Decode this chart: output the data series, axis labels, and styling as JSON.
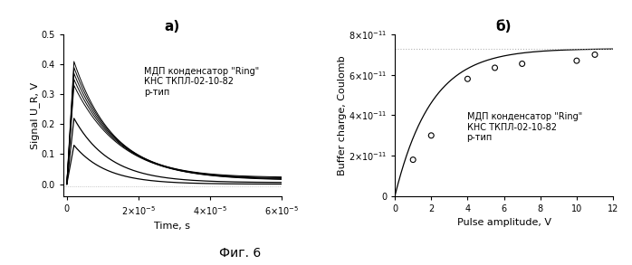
{
  "fig_title_a": "а)",
  "fig_title_b": "б)",
  "bottom_label": "Фиг. 6",
  "plot_a": {
    "xlabel": "Time, s",
    "ylabel": "Signal U_R, V",
    "xlim": [
      -1e-06,
      6e-05
    ],
    "ylim": [
      -0.04,
      0.5
    ],
    "xticks": [
      0,
      2e-05,
      4e-05,
      6e-05
    ],
    "yticks": [
      0.0,
      0.1,
      0.2,
      0.3,
      0.4,
      0.5
    ],
    "annotation": "МДП конденсатор \"Ring\"\nКНС ТКПЛ-02-10-82\np-тип",
    "num_curves": 7,
    "peak_time": 2e-06,
    "peaks": [
      0.41,
      0.39,
      0.37,
      0.35,
      0.33,
      0.22,
      0.13
    ],
    "taus": [
      1.1e-05,
      1.15e-05,
      1.2e-05,
      1.25e-05,
      1.3e-05,
      1e-05,
      9e-06
    ],
    "offsets": [
      0.022,
      0.019,
      0.016,
      0.014,
      0.012,
      0.005,
      0.0
    ]
  },
  "plot_b": {
    "xlabel": "Pulse amplitude, V",
    "ylabel": "Buffer charge, Coulomb",
    "xlim": [
      0,
      12
    ],
    "ylim": [
      0,
      8e-11
    ],
    "xticks": [
      0,
      2,
      4,
      6,
      8,
      10,
      12
    ],
    "yticks": [
      0,
      2e-11,
      4e-11,
      6e-11,
      8e-11
    ],
    "annotation": "МДП конденсатор \"Ring\"\nКНС ТКПЛ-02-10-82\np-тип",
    "data_x": [
      1.0,
      2.0,
      4.0,
      5.5,
      7.0,
      10.0,
      11.0
    ],
    "data_y": [
      1.8e-11,
      3e-11,
      5.8e-11,
      6.35e-11,
      6.55e-11,
      6.7e-11,
      7e-11
    ],
    "asymptote": 7.3e-11,
    "curve_A": 7.3e-11,
    "curve_x0": 0.0,
    "curve_tau": 2.0
  },
  "background_color": "#ffffff",
  "line_color": "#000000",
  "dot_color": "#000000",
  "dashed_color": "#aaaaaa"
}
